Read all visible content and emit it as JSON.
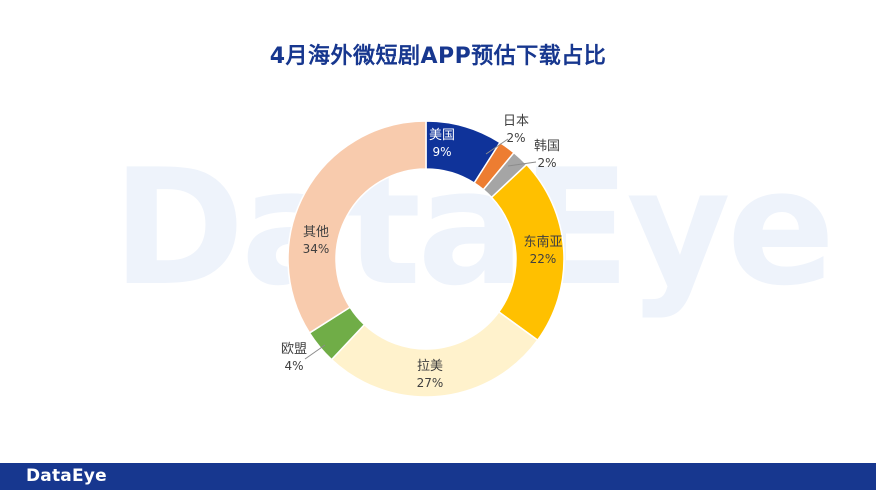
{
  "watermark": "DataEye",
  "footer": {
    "logo": "DataEye"
  },
  "chart_data": {
    "type": "pie",
    "donut": true,
    "title": "4月海外微短剧APP预估下载占比",
    "slices": [
      {
        "label": "美国",
        "value": 9,
        "value_label": "9%",
        "color": "#0f339a",
        "label_color": "#ffffff"
      },
      {
        "label": "日本",
        "value": 2,
        "value_label": "2%",
        "color": "#ed7d31",
        "label_color": "#404040"
      },
      {
        "label": "韩国",
        "value": 2,
        "value_label": "2%",
        "color": "#a5a5a5",
        "label_color": "#404040"
      },
      {
        "label": "东南亚",
        "value": 22,
        "value_label": "22%",
        "color": "#ffc000",
        "label_color": "#404040"
      },
      {
        "label": "拉美",
        "value": 27,
        "value_label": "27%",
        "color": "#fff2cc",
        "label_color": "#404040"
      },
      {
        "label": "欧盟",
        "value": 4,
        "value_label": "4%",
        "color": "#70ad47",
        "label_color": "#404040"
      },
      {
        "label": "其他",
        "value": 34,
        "value_label": "34%",
        "color": "#f8cbad",
        "label_color": "#404040"
      }
    ]
  }
}
